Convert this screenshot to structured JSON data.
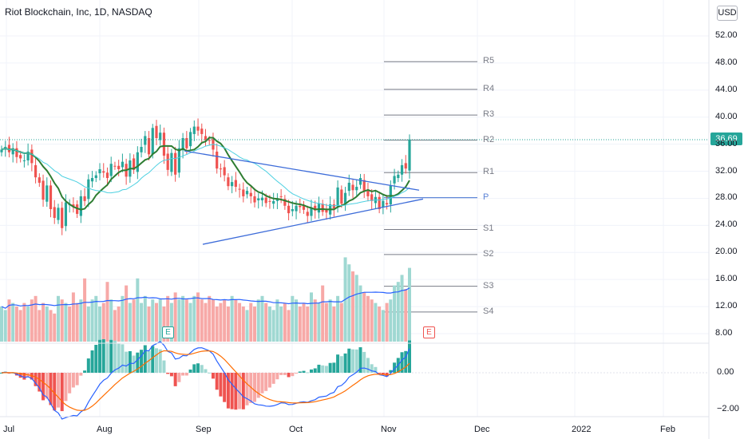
{
  "title": "Riot Blockchain, Inc, 1D, NASDAQ",
  "currency": "USD",
  "last_price": "36.69",
  "colors": {
    "up": "#26a69a",
    "down": "#ef5350",
    "ma_fast": "#2e7d32",
    "ma_slow": "#4dd0e1",
    "trend": "#3d6cd9",
    "pivot_p": "#5b83d6",
    "pivot_line": "#787b86",
    "macd": "#2962ff",
    "signal": "#ff6d00",
    "vol_avg": "#2962ff"
  },
  "price_axis": {
    "labels": [
      "52.00",
      "48.00",
      "44.00",
      "40.00",
      "36.00",
      "32.00",
      "28.00",
      "24.00",
      "20.00",
      "16.00",
      "12.00",
      "8.00"
    ]
  },
  "macd_axis": {
    "labels": [
      "0.00",
      "−2.00"
    ]
  },
  "time_axis": {
    "labels": [
      "Jul",
      "Aug",
      "Sep",
      "Oct",
      "Nov",
      "Dec",
      "2022",
      "Feb"
    ]
  },
  "earnings_badge": "E",
  "chart_data": {
    "type": "candlestick",
    "symbol": "Riot Blockchain, Inc",
    "interval": "1D",
    "exchange": "NASDAQ",
    "period": "Jul 2021 – Nov 2021",
    "y_range": [
      6,
      54
    ],
    "pivots": [
      {
        "name": "R5",
        "value": 48.2
      },
      {
        "name": "R4",
        "value": 44.1
      },
      {
        "name": "R3",
        "value": 40.3
      },
      {
        "name": "R2",
        "value": 36.6
      },
      {
        "name": "R1",
        "value": 31.8
      },
      {
        "name": "P",
        "value": 28.1
      },
      {
        "name": "S1",
        "value": 23.4
      },
      {
        "name": "S2",
        "value": 19.7
      },
      {
        "name": "S3",
        "value": 15.0
      },
      {
        "name": "S4",
        "value": 11.2
      }
    ],
    "closes": [
      35.2,
      35.6,
      34.8,
      35.4,
      34.1,
      33.9,
      33.6,
      34.9,
      33.2,
      31.1,
      30.3,
      27.8,
      29.9,
      26.4,
      25.1,
      26.6,
      23.6,
      27.4,
      27.1,
      26.8,
      25.7,
      28.3,
      27.6,
      30.8,
      31.0,
      31.4,
      32.3,
      31.8,
      31.0,
      33.1,
      32.8,
      32.3,
      33.4,
      31.2,
      33.6,
      32.2,
      34.8,
      35.6,
      37.2,
      34.5,
      38.4,
      36.9,
      37.7,
      34.3,
      32.2,
      34.7,
      31.5,
      35.4,
      36.9,
      35.4,
      37.8,
      38.6,
      38.0,
      37.5,
      36.6,
      36.5,
      35.2,
      32.4,
      32.3,
      31.4,
      29.8,
      30.4,
      29.7,
      29.3,
      28.3,
      29.1,
      28.3,
      27.4,
      28.0,
      28.1,
      27.3,
      27.5,
      27.6,
      28.0,
      28.2,
      26.9,
      25.8,
      26.4,
      26.9,
      26.7,
      26.3,
      25.4,
      26.6,
      26.2,
      27.2,
      26.0,
      25.9,
      27.1,
      26.5,
      29.6,
      27.2,
      28.8,
      30.3,
      29.2,
      29.7,
      31.0,
      29.1,
      28.3,
      27.6,
      28.2,
      26.4,
      27.6,
      27.1,
      29.9,
      31.3,
      31.5,
      32.9,
      32.4,
      36.7
    ],
    "volume_m": [
      10,
      9,
      12,
      11,
      10,
      9,
      11,
      10,
      12,
      13,
      9,
      11,
      10,
      9,
      8,
      13,
      12,
      11,
      10,
      14,
      11,
      12,
      18,
      10,
      12,
      13,
      10,
      11,
      17,
      12,
      9,
      10,
      13,
      16,
      11,
      12,
      18,
      11,
      13,
      10,
      12,
      11,
      12,
      10,
      13,
      11,
      14,
      12,
      13,
      12,
      11,
      13,
      14,
      12,
      11,
      13,
      12,
      10,
      11,
      12,
      10,
      13,
      12,
      11,
      10,
      9,
      11,
      10,
      12,
      13,
      11,
      10,
      9,
      12,
      10,
      11,
      9,
      13,
      12,
      10,
      11,
      10,
      14,
      12,
      11,
      16,
      11,
      12,
      10,
      13,
      11,
      24,
      22,
      20,
      19,
      16,
      14,
      13,
      12,
      11,
      10,
      9,
      11,
      12,
      16,
      17,
      19,
      15,
      21
    ],
    "macd": "MACD (12,26,9) line, signal and histogram"
  }
}
